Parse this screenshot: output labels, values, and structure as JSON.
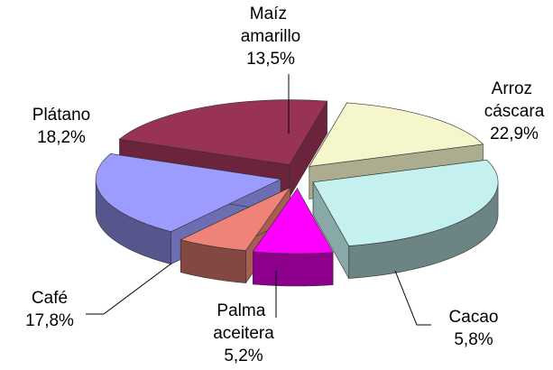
{
  "chart_data": {
    "type": "pie",
    "categories": [
      "Arroz cáscara",
      "Cacao",
      "Palma aceitera",
      "Café",
      "Plátano",
      "Maíz amarillo"
    ],
    "values": [
      22.9,
      5.8,
      5.2,
      17.8,
      18.2,
      13.5
    ],
    "value_labels": [
      "22,9%",
      "5,8%",
      "5,2%",
      "17,8%",
      "18,2%",
      "13,5%"
    ],
    "colors": [
      "#c4f0f0",
      "#ff00ff",
      "#f08378",
      "#9c9cff",
      "#993355",
      "#f6f6cc"
    ]
  }
}
